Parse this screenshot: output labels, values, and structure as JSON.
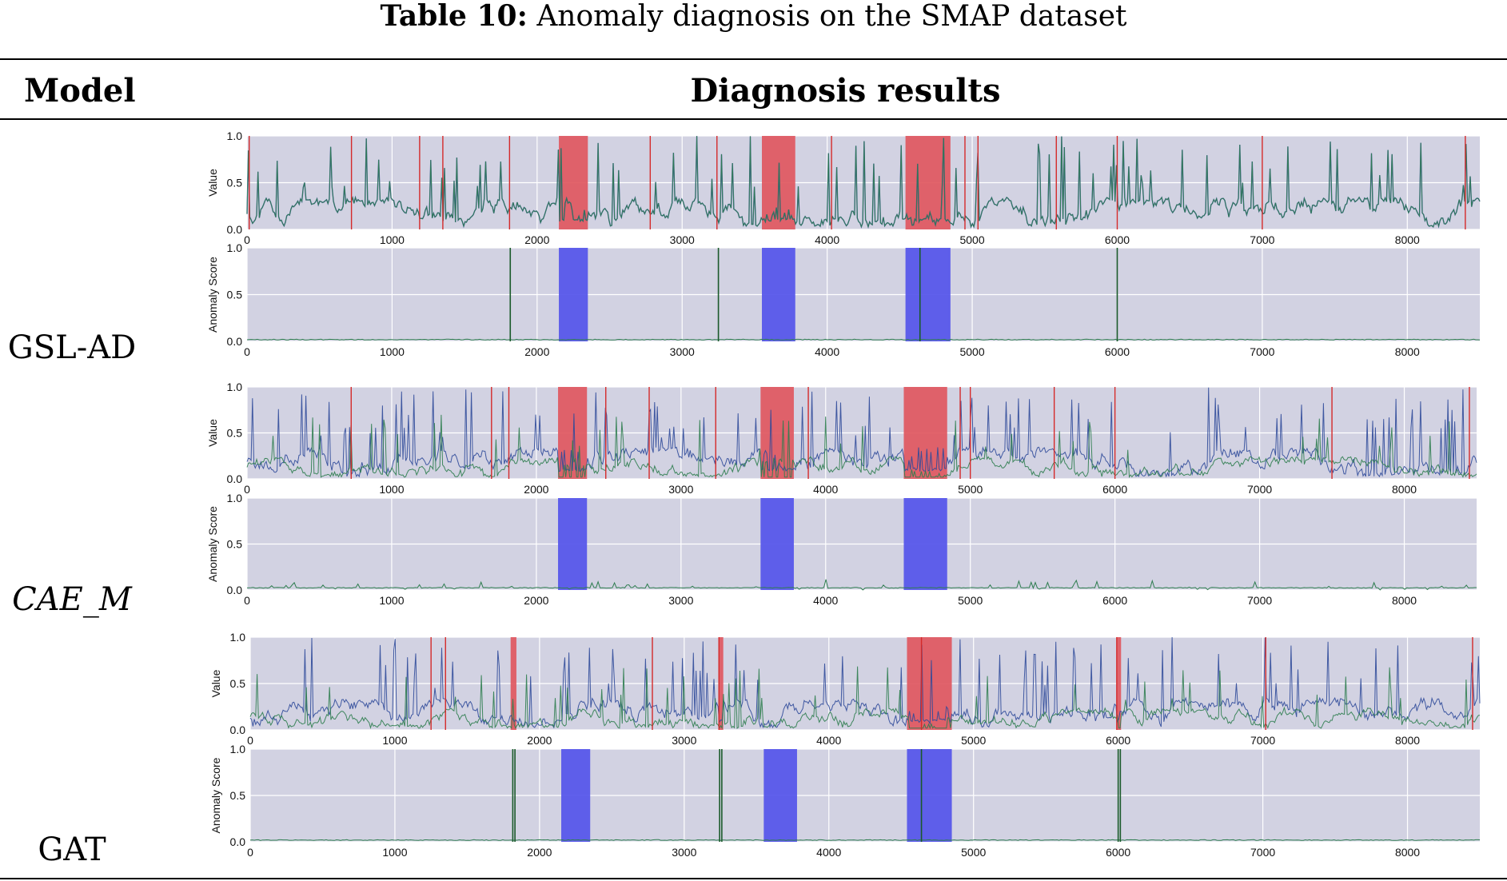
{
  "caption": {
    "label": "Table 10:",
    "text": "Anomaly diagnosis on the SMAP dataset"
  },
  "table": {
    "headers": {
      "model": "Model",
      "results": "Diagnosis results"
    },
    "models": [
      {
        "name": "GSL-AD",
        "italic": false
      },
      {
        "name": "CAE_M",
        "italic": true
      },
      {
        "name": "GAT",
        "italic": false
      }
    ]
  },
  "colors": {
    "plot_bg": "#d2d2e2",
    "grid": "#ffffff",
    "true_line": "#2f4a9a",
    "pred_line": "#2e7d4f",
    "anomaly_region_value": "#e0575f",
    "anomaly_region_score": "#5454ea",
    "spike_marker": "#d42a2a",
    "score_spike": "#1a5a2a"
  },
  "chart_data": [
    {
      "model": "GSL-AD",
      "panel": "value",
      "type": "line",
      "ylabel": "Value",
      "xlim": [
        0,
        8500
      ],
      "ylim": [
        0,
        1
      ],
      "xticks": [
        0,
        1000,
        2000,
        3000,
        4000,
        5000,
        6000,
        7000,
        8000
      ],
      "yticks": [
        0.0,
        0.5,
        1.0
      ],
      "series": [
        {
          "name": "actual",
          "color": "#2f4a9a",
          "seed": 11,
          "overlap": true
        },
        {
          "name": "predicted",
          "color": "#2e7d4f",
          "seed": 11
        }
      ],
      "anomaly_regions": [
        [
          2150,
          2350
        ],
        [
          3550,
          3780
        ],
        [
          4540,
          4850
        ]
      ],
      "markers": [
        15,
        720,
        1190,
        1350,
        1810,
        2780,
        3240,
        4030,
        4950,
        5040,
        5580,
        6000,
        7000,
        8400
      ]
    },
    {
      "model": "GSL-AD",
      "panel": "score",
      "type": "line",
      "ylabel": "Anomaly Score",
      "xlim": [
        0,
        8500
      ],
      "ylim": [
        0,
        1
      ],
      "xticks": [
        0,
        1000,
        2000,
        3000,
        4000,
        5000,
        6000,
        7000,
        8000
      ],
      "yticks": [
        0.0,
        0.5,
        1.0
      ],
      "baseline": 0.015,
      "spikes": [
        [
          1815,
          1.0
        ],
        [
          3250,
          1.0
        ],
        [
          4640,
          1.0
        ],
        [
          6000,
          1.0
        ]
      ],
      "anomaly_regions": [
        [
          2150,
          2350
        ],
        [
          3550,
          3780
        ],
        [
          4540,
          4850
        ]
      ]
    },
    {
      "model": "CAE_M",
      "panel": "value",
      "type": "line",
      "ylabel": "Value",
      "xlim": [
        0,
        8500
      ],
      "ylim": [
        0,
        1
      ],
      "xticks": [
        0,
        1000,
        2000,
        3000,
        4000,
        5000,
        6000,
        7000,
        8000
      ],
      "yticks": [
        0.0,
        0.5,
        1.0
      ],
      "series": [
        {
          "name": "actual",
          "color": "#2f4a9a",
          "seed": 23
        },
        {
          "name": "predicted",
          "color": "#2e7d4f",
          "seed": 47,
          "low": true
        }
      ],
      "anomaly_regions": [
        [
          2150,
          2350
        ],
        [
          3550,
          3780
        ],
        [
          4540,
          4840
        ]
      ],
      "markers": [
        720,
        1690,
        1810,
        2480,
        2780,
        3240,
        3880,
        4930,
        5000,
        5580,
        6000,
        7500,
        8450
      ]
    },
    {
      "model": "CAE_M",
      "panel": "score",
      "type": "line",
      "ylabel": "Anomaly Score",
      "xlim": [
        0,
        8500
      ],
      "ylim": [
        0,
        1
      ],
      "xticks": [
        0,
        1000,
        2000,
        3000,
        4000,
        5000,
        6000,
        7000,
        8000
      ],
      "yticks": [
        0.0,
        0.5,
        1.0
      ],
      "baseline": 0.02,
      "noise": 0.12,
      "spikes": [],
      "anomaly_regions": [
        [
          2150,
          2350
        ],
        [
          3550,
          3780
        ],
        [
          4540,
          4840
        ]
      ]
    },
    {
      "model": "GAT",
      "panel": "value",
      "type": "line",
      "ylabel": "Value",
      "xlim": [
        0,
        8500
      ],
      "ylim": [
        0,
        1
      ],
      "xticks": [
        0,
        1000,
        2000,
        3000,
        4000,
        5000,
        6000,
        7000,
        8000
      ],
      "yticks": [
        0.0,
        0.5,
        1.0
      ],
      "series": [
        {
          "name": "actual",
          "color": "#2f4a9a",
          "seed": 31
        },
        {
          "name": "predicted",
          "color": "#2e7d4f",
          "seed": 59,
          "low": true
        }
      ],
      "anomaly_regions": [
        [
          1800,
          1840
        ],
        [
          3240,
          3270
        ],
        [
          4540,
          4850
        ],
        [
          5990,
          6020
        ]
      ],
      "markers": [
        1250,
        1350,
        2780,
        3240,
        4640,
        5990,
        7020,
        8450
      ]
    },
    {
      "model": "GAT",
      "panel": "score",
      "type": "line",
      "ylabel": "Anomaly Score",
      "xlim": [
        0,
        8500
      ],
      "ylim": [
        0,
        1
      ],
      "xticks": [
        0,
        1000,
        2000,
        3000,
        4000,
        5000,
        6000,
        7000,
        8000
      ],
      "yticks": [
        0.0,
        0.5,
        1.0
      ],
      "baseline": 0.015,
      "spikes": [
        [
          1815,
          1.0
        ],
        [
          1830,
          1.0
        ],
        [
          3245,
          1.0
        ],
        [
          3260,
          1.0
        ],
        [
          4640,
          1.0
        ],
        [
          6000,
          1.0
        ],
        [
          6015,
          1.0
        ]
      ],
      "anomaly_regions": [
        [
          2150,
          2350
        ],
        [
          3550,
          3780
        ],
        [
          4540,
          4850
        ]
      ]
    }
  ]
}
